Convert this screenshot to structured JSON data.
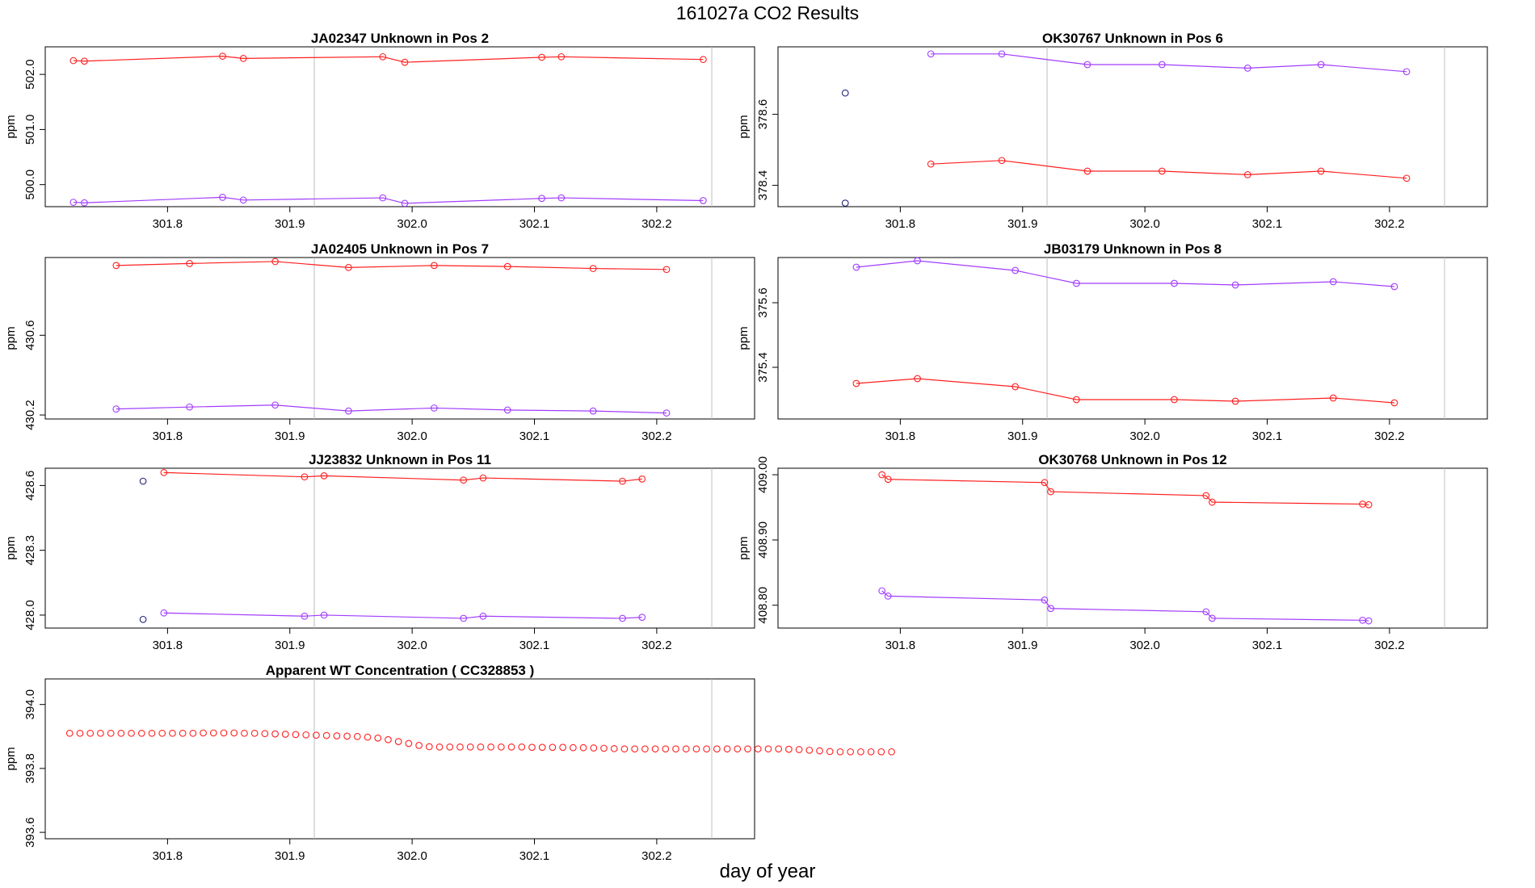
{
  "figure": {
    "title": "161027a  CO2 Results",
    "xlabel": "day of year"
  },
  "colors": {
    "series_red": "#ff2020",
    "series_purple": "#a23cff",
    "reference_line": "#bebebe",
    "axis": "#000000",
    "outlier": "#20207a"
  },
  "chart_data": [
    {
      "type": "line",
      "title": "JA02347    Unknown in Pos 2",
      "xlabel": "",
      "ylabel": "ppm",
      "xlim": [
        301.7,
        302.28
      ],
      "ylim": [
        499.6,
        502.5
      ],
      "xticks": [
        "301.8",
        "301.9",
        "302.0",
        "302.1",
        "302.2"
      ],
      "yticks": [
        "500.0",
        "501.0",
        "502.0"
      ],
      "vlines": [
        301.92,
        302.245
      ],
      "series": [
        {
          "color": "red",
          "x": [
            301.723,
            301.732,
            301.845,
            301.862,
            301.976,
            301.994,
            302.106,
            302.122,
            302.238
          ],
          "y": [
            502.25,
            502.24,
            502.33,
            502.29,
            502.32,
            502.22,
            502.31,
            502.32,
            502.27
          ]
        },
        {
          "color": "purple",
          "x": [
            301.723,
            301.732,
            301.845,
            301.862,
            301.976,
            301.994,
            302.106,
            302.122,
            302.238
          ],
          "y": [
            499.68,
            499.67,
            499.77,
            499.72,
            499.76,
            499.66,
            499.75,
            499.76,
            499.71
          ]
        }
      ]
    },
    {
      "type": "line",
      "title": "OK30767    Unknown in Pos 6",
      "xlabel": "",
      "ylabel": "ppm",
      "xlim": [
        301.7,
        302.28
      ],
      "ylim": [
        378.34,
        378.79
      ],
      "xticks": [
        "301.8",
        "301.9",
        "302.0",
        "302.1",
        "302.2"
      ],
      "yticks": [
        "378.4",
        "378.6"
      ],
      "vlines": [
        301.92,
        302.245
      ],
      "series": [
        {
          "color": "purple",
          "x": [
            301.825,
            301.883,
            301.953,
            302.014,
            302.084,
            302.144,
            302.214
          ],
          "y": [
            378.77,
            378.77,
            378.74,
            378.74,
            378.73,
            378.74,
            378.72
          ]
        },
        {
          "color": "red",
          "x": [
            301.825,
            301.883,
            301.953,
            302.014,
            302.084,
            302.144,
            302.214
          ],
          "y": [
            378.46,
            378.47,
            378.44,
            378.44,
            378.43,
            378.44,
            378.42
          ]
        },
        {
          "color": "outlier",
          "points_only": true,
          "x": [
            301.755,
            301.755
          ],
          "y": [
            378.66,
            378.35
          ]
        }
      ]
    },
    {
      "type": "line",
      "title": "JA02405    Unknown in Pos 7",
      "xlabel": "",
      "ylabel": "ppm",
      "xlim": [
        301.7,
        302.28
      ],
      "ylim": [
        430.18,
        430.99
      ],
      "xticks": [
        "301.8",
        "301.9",
        "302.0",
        "302.1",
        "302.2"
      ],
      "yticks": [
        "430.2",
        "430.6"
      ],
      "vlines": [
        301.92,
        302.245
      ],
      "series": [
        {
          "color": "red",
          "x": [
            301.758,
            301.818,
            301.888,
            301.948,
            302.018,
            302.078,
            302.148,
            302.208
          ],
          "y": [
            430.95,
            430.96,
            430.97,
            430.94,
            430.95,
            430.945,
            430.935,
            430.93
          ]
        },
        {
          "color": "purple",
          "x": [
            301.758,
            301.818,
            301.888,
            301.948,
            302.018,
            302.078,
            302.148,
            302.208
          ],
          "y": [
            430.23,
            430.24,
            430.25,
            430.22,
            430.235,
            430.225,
            430.22,
            430.21
          ]
        }
      ]
    },
    {
      "type": "line",
      "title": "JB03179    Unknown in Pos 8",
      "xlabel": "",
      "ylabel": "ppm",
      "xlim": [
        301.7,
        302.28
      ],
      "ylim": [
        375.24,
        375.74
      ],
      "xticks": [
        "301.8",
        "301.9",
        "302.0",
        "302.1",
        "302.2"
      ],
      "yticks": [
        "375.4",
        "375.6"
      ],
      "vlines": [
        301.92,
        302.245
      ],
      "series": [
        {
          "color": "purple",
          "x": [
            301.764,
            301.814,
            301.894,
            301.944,
            302.024,
            302.074,
            302.154,
            302.204
          ],
          "y": [
            375.71,
            375.73,
            375.7,
            375.66,
            375.66,
            375.655,
            375.665,
            375.65
          ]
        },
        {
          "color": "red",
          "x": [
            301.764,
            301.814,
            301.894,
            301.944,
            302.024,
            302.074,
            302.154,
            302.204
          ],
          "y": [
            375.35,
            375.365,
            375.34,
            375.3,
            375.3,
            375.295,
            375.305,
            375.29
          ]
        }
      ]
    },
    {
      "type": "line",
      "title": "JJ23832    Unknown in Pos 11",
      "xlabel": "",
      "ylabel": "ppm",
      "xlim": [
        301.7,
        302.28
      ],
      "ylim": [
        427.94,
        428.68
      ],
      "xticks": [
        "301.8",
        "301.9",
        "302.0",
        "302.1",
        "302.2"
      ],
      "yticks": [
        "428.0",
        "428.3",
        "428.6"
      ],
      "vlines": [
        301.92,
        302.245
      ],
      "series": [
        {
          "color": "red",
          "x": [
            301.797,
            301.912,
            301.928,
            302.042,
            302.058,
            302.172,
            302.188
          ],
          "y": [
            428.66,
            428.64,
            428.645,
            428.625,
            428.635,
            428.62,
            428.63
          ]
        },
        {
          "color": "purple",
          "x": [
            301.797,
            301.912,
            301.928,
            302.042,
            302.058,
            302.172,
            302.188
          ],
          "y": [
            428.01,
            427.995,
            428.0,
            427.985,
            427.995,
            427.985,
            427.99
          ]
        },
        {
          "color": "outlier",
          "points_only": true,
          "x": [
            301.78,
            301.78
          ],
          "y": [
            428.62,
            427.98
          ]
        }
      ]
    },
    {
      "type": "line",
      "title": "OK30768    Unknown in Pos 12",
      "xlabel": "",
      "ylabel": "ppm",
      "xlim": [
        301.7,
        302.28
      ],
      "ylim": [
        408.765,
        409.01
      ],
      "xticks": [
        "301.8",
        "301.9",
        "302.0",
        "302.1",
        "302.2"
      ],
      "yticks": [
        "408.80",
        "408.90",
        "409.00"
      ],
      "vlines": [
        301.92,
        302.245
      ],
      "series": [
        {
          "color": "red",
          "x": [
            301.785,
            301.79,
            301.918,
            301.923,
            302.05,
            302.055,
            302.178,
            302.183
          ],
          "y": [
            409.0,
            408.993,
            408.988,
            408.974,
            408.968,
            408.958,
            408.955,
            408.954
          ]
        },
        {
          "color": "purple",
          "x": [
            301.785,
            301.79,
            301.918,
            301.923,
            302.05,
            302.055,
            302.178,
            302.183
          ],
          "y": [
            408.822,
            408.814,
            408.808,
            408.795,
            408.79,
            408.78,
            408.777,
            408.776
          ]
        }
      ]
    },
    {
      "type": "scatter",
      "title": "Apparent WT Concentration ( CC328853 )",
      "xlabel": "",
      "ylabel": "ppm",
      "xlim": [
        301.7,
        302.28
      ],
      "ylim": [
        393.58,
        394.08
      ],
      "xticks": [
        "301.8",
        "301.9",
        "302.0",
        "302.1",
        "302.2"
      ],
      "yticks": [
        "393.6",
        "393.8",
        "394.0"
      ],
      "vlines": [
        301.92,
        302.245
      ],
      "series": [
        {
          "color": "red",
          "x_start": 301.72,
          "x_step": 0.0084,
          "y": [
            393.91,
            393.91,
            393.91,
            393.91,
            393.91,
            393.91,
            393.91,
            393.91,
            393.91,
            393.91,
            393.91,
            393.91,
            393.91,
            393.911,
            393.911,
            393.911,
            393.911,
            393.91,
            393.91,
            393.909,
            393.908,
            393.907,
            393.906,
            393.905,
            393.904,
            393.903,
            393.902,
            393.901,
            393.9,
            393.898,
            393.895,
            393.89,
            393.884,
            393.878,
            393.872,
            393.868,
            393.867,
            393.867,
            393.867,
            393.867,
            393.867,
            393.867,
            393.867,
            393.867,
            393.867,
            393.866,
            393.866,
            393.866,
            393.866,
            393.865,
            393.865,
            393.864,
            393.863,
            393.862,
            393.861,
            393.861,
            393.861,
            393.861,
            393.861,
            393.861,
            393.861,
            393.861,
            393.861,
            393.861,
            393.861,
            393.861,
            393.861,
            393.861,
            393.861,
            393.861,
            393.86,
            393.859,
            393.857,
            393.855,
            393.853,
            393.852,
            393.852,
            393.852,
            393.852,
            393.852,
            393.852
          ]
        }
      ]
    }
  ]
}
